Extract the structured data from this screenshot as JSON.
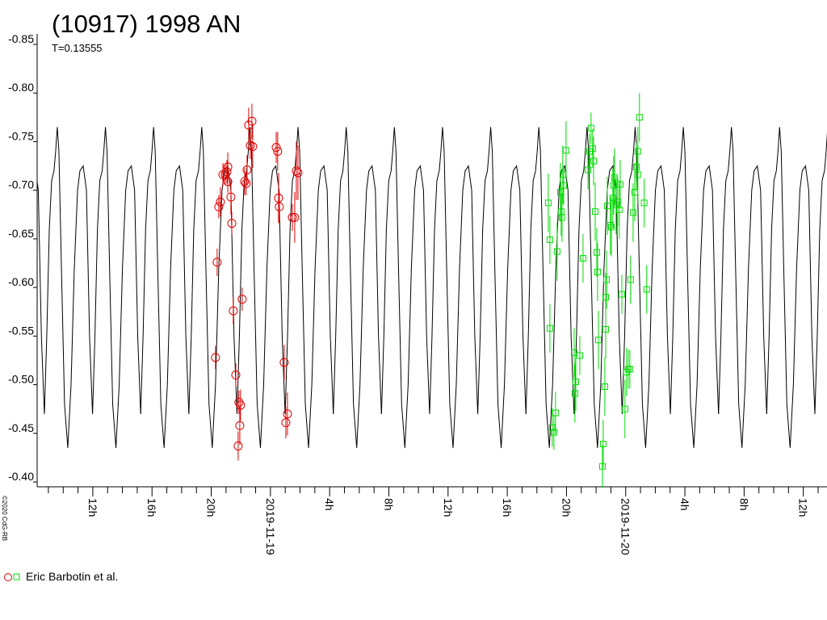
{
  "chart_data": {
    "type": "lightcurve",
    "title": "(10917) 1998 AN",
    "subtitle": {
      "value": 0.13555,
      "label": "T=0.13555"
    },
    "copyright": "©2020 CdG-RB",
    "ylim": [
      -0.4,
      -0.85
    ],
    "yticks": [
      -0.85,
      {
        "value": -0.8,
        "label": "-0.80"
      },
      -0.75,
      {
        "value": -0.7,
        "label": "-0.70"
      },
      -0.65,
      {
        "value": -0.6,
        "label": "-0.60"
      },
      -0.55,
      {
        "value": -0.5,
        "label": "-0.50"
      },
      -0.45,
      {
        "value": -0.4,
        "label": "-0.40"
      }
    ],
    "xlim": [
      8.24,
      61.6
    ],
    "xticks": [
      {
        "value": 12,
        "label": "12h"
      },
      {
        "value": 16,
        "label": "16h"
      },
      {
        "value": 20,
        "label": "20h"
      },
      {
        "value": 24,
        "label": "2019-11-19"
      },
      {
        "value": 28,
        "label": "4h"
      },
      {
        "value": 32,
        "label": "8h"
      },
      {
        "value": 36,
        "label": "12h"
      },
      {
        "value": 40,
        "label": "16h"
      },
      {
        "value": 44,
        "label": "20h"
      },
      {
        "value": 48,
        "label": "2019-11-20"
      },
      {
        "value": 52,
        "label": "4h"
      },
      {
        "value": 56,
        "label": "8h"
      },
      {
        "value": 60,
        "label": "12h"
      }
    ],
    "xminorticks": [
      9,
      10,
      11,
      13,
      14,
      15,
      17,
      18,
      19,
      21,
      22,
      23,
      25,
      26,
      27,
      29,
      30,
      31,
      33,
      34,
      35,
      37,
      38,
      39,
      41,
      42,
      43,
      45,
      46,
      47,
      49,
      50,
      51,
      53,
      54,
      55,
      57,
      58,
      59,
      61
    ],
    "model": {
      "color": "#000000",
      "x": [
        8.73,
        8.89,
        9.06,
        9.22,
        9.38,
        9.49,
        9.6,
        9.71,
        9.88,
        10.09,
        10.31,
        10.53,
        10.75,
        10.97,
        11.13,
        11.35,
        11.57,
        11.78,
        11.98
      ],
      "values": [
        -0.47,
        -0.55,
        -0.66,
        -0.71,
        -0.72,
        -0.74,
        -0.765,
        -0.74,
        -0.62,
        -0.48,
        -0.435,
        -0.5,
        -0.62,
        -0.7,
        -0.72,
        -0.725,
        -0.7,
        -0.55,
        -0.47
      ]
    },
    "series": [
      {
        "name": "Eric Barbotin et al.",
        "sessions": [
          {
            "color": "#e00000",
            "marker": "circle",
            "x": [
              20.29,
              20.4,
              20.51,
              20.62,
              20.79,
              20.95,
              21.06,
              21.12,
              21.12,
              21.33,
              21.39,
              21.49,
              21.66,
              21.87,
              21.98,
              21.93,
              21.82,
              22.09,
              22.26,
              22.36,
              22.42,
              22.53,
              22.64,
              22.75,
              22.8,
              24.39,
              24.49,
              24.55,
              24.6,
              24.93,
              25.04,
              25.15,
              25.48,
              25.64,
              25.75,
              25.86
            ],
            "values": [
              -0.528,
              -0.626,
              -0.683,
              -0.688,
              -0.716,
              -0.716,
              -0.719,
              -0.724,
              -0.709,
              -0.693,
              -0.666,
              -0.576,
              -0.51,
              -0.482,
              -0.479,
              -0.458,
              -0.437,
              -0.588,
              -0.709,
              -0.707,
              -0.721,
              -0.767,
              -0.746,
              -0.771,
              -0.745,
              -0.744,
              -0.74,
              -0.692,
              -0.683,
              -0.523,
              -0.461,
              -0.47,
              -0.672,
              -0.672,
              -0.72,
              -0.718
            ],
            "errors": [
              0.012,
              0.014,
              0.012,
              0.015,
              0.012,
              0.01,
              0.012,
              0.015,
              0.012,
              0.018,
              0.012,
              0.014,
              0.012,
              0.012,
              0.016,
              0.02,
              0.015,
              0.012,
              0.014,
              0.012,
              0.015,
              0.018,
              0.014,
              0.018,
              0.022,
              0.016,
              0.02,
              0.026,
              0.016,
              0.018,
              0.016,
              0.022,
              0.014,
              0.026,
              0.03,
              0.028
            ]
          },
          {
            "color": "#00dd00",
            "marker": "square",
            "x": [
              42.77,
              42.88,
              42.88,
              43.04,
              43.15,
              43.26,
              43.37,
              43.59,
              43.64,
              43.7,
              43.75,
              43.81,
              43.97,
              44.52,
              44.63,
              44.57,
              44.9,
              45.12,
              45.45,
              45.56,
              45.66,
              45.77,
              45.83,
              45.94,
              46.05,
              46.1,
              46.16,
              46.48,
              46.43,
              46.59,
              46.65,
              46.7,
              46.76,
              46.65,
              46.97,
              47.03,
              47.13,
              47.19,
              47.24,
              47.35,
              47.46,
              47.57,
              47.63,
              47.74,
              47.95,
              48.06,
              48.17,
              48.28,
              48.33,
              48.5,
              48.61,
              48.72,
              48.82,
              48.93,
              48.82,
              49.25,
              49.42
            ],
            "values": [
              -0.687,
              -0.649,
              -0.558,
              -0.456,
              -0.451,
              -0.471,
              -0.637,
              -0.698,
              -0.678,
              -0.672,
              -0.716,
              -0.705,
              -0.741,
              -0.533,
              -0.503,
              -0.491,
              -0.53,
              -0.63,
              -0.721,
              -0.74,
              -0.764,
              -0.743,
              -0.73,
              -0.678,
              -0.636,
              -0.616,
              -0.546,
              -0.439,
              -0.416,
              -0.498,
              -0.59,
              -0.608,
              -0.684,
              -0.557,
              -0.664,
              -0.662,
              -0.692,
              -0.705,
              -0.713,
              -0.685,
              -0.688,
              -0.68,
              -0.706,
              -0.593,
              -0.475,
              -0.513,
              -0.516,
              -0.516,
              -0.608,
              -0.677,
              -0.698,
              -0.724,
              -0.74,
              -0.775,
              -0.716,
              -0.687,
              -0.598
            ],
            "errors": [
              0.03,
              0.025,
              0.025,
              0.02,
              0.018,
              0.022,
              0.03,
              0.03,
              0.025,
              0.025,
              0.03,
              0.02,
              0.03,
              0.025,
              0.03,
              0.03,
              0.02,
              0.025,
              0.02,
              0.018,
              0.016,
              0.02,
              0.025,
              0.03,
              0.025,
              0.03,
              0.03,
              0.025,
              0.022,
              0.03,
              0.025,
              0.03,
              0.03,
              0.03,
              0.03,
              0.03,
              0.03,
              0.03,
              0.03,
              0.03,
              0.025,
              0.03,
              0.025,
              0.02,
              0.03,
              0.025,
              0.02,
              0.02,
              0.025,
              0.03,
              0.03,
              0.025,
              0.025,
              0.025,
              0.03,
              0.025,
              0.025
            ]
          }
        ]
      }
    ]
  }
}
